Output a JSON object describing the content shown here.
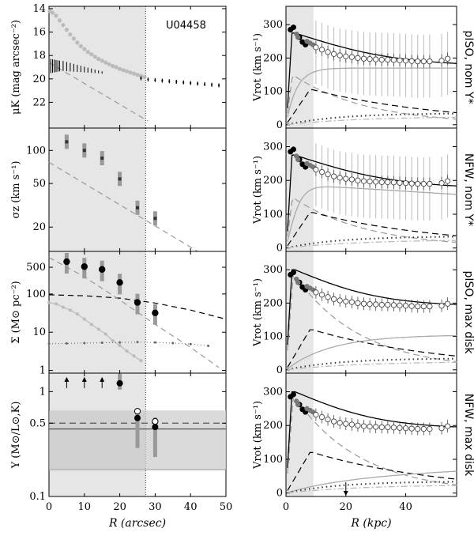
{
  "colors": {
    "shade": "#e6e6e6",
    "band_dark": "#bfbfbf",
    "band_light": "#d9d9d9",
    "grey": "#999999",
    "open": "#444444"
  },
  "chart_data": [
    {
      "type": "scatter",
      "panel": "surface-brightness",
      "galaxy": "U04458",
      "ylabel": "μ_K (mag arcsec^-2)",
      "ylim": [
        24,
        14
      ],
      "yticks": [
        "14",
        "16",
        "18",
        "20",
        "22"
      ],
      "xlim": [
        0,
        50
      ],
      "xticks": [
        "0",
        "10",
        "20",
        "30",
        "40",
        "50"
      ],
      "shade_xmax": 27.3,
      "profile": [
        [
          0.2,
          14.2
        ],
        [
          1,
          14.35
        ],
        [
          2,
          14.6
        ],
        [
          3,
          15.0
        ],
        [
          4,
          15.4
        ],
        [
          5,
          15.8
        ],
        [
          6,
          16.2
        ],
        [
          7,
          16.55
        ],
        [
          8,
          16.9
        ],
        [
          9,
          17.2
        ],
        [
          10,
          17.45
        ],
        [
          11,
          17.7
        ],
        [
          12,
          17.9
        ],
        [
          13,
          18.1
        ],
        [
          14,
          18.3
        ],
        [
          15,
          18.45
        ],
        [
          16,
          18.6
        ],
        [
          17,
          18.75
        ],
        [
          18,
          18.9
        ],
        [
          19,
          19.0
        ],
        [
          20,
          19.15
        ],
        [
          21,
          19.25
        ],
        [
          22,
          19.35
        ],
        [
          23,
          19.45
        ],
        [
          24,
          19.55
        ],
        [
          25,
          19.65
        ],
        [
          26,
          19.75
        ],
        [
          27,
          19.85
        ]
      ],
      "inner_points": [
        [
          0.5,
          18.9
        ],
        [
          1,
          18.9
        ],
        [
          1.5,
          18.9
        ],
        [
          2,
          18.9
        ],
        [
          2.5,
          18.9
        ],
        [
          3,
          18.9
        ],
        [
          4,
          18.9
        ],
        [
          5,
          18.95
        ],
        [
          6,
          19.0
        ],
        [
          7,
          19.05
        ],
        [
          8,
          19.1
        ],
        [
          9,
          19.15
        ],
        [
          10,
          19.2
        ],
        [
          11,
          19.25
        ],
        [
          12,
          19.3
        ],
        [
          13,
          19.35
        ],
        [
          14,
          19.4
        ],
        [
          15,
          19.45
        ]
      ],
      "outer_points": [
        [
          26,
          19.95
        ],
        [
          28,
          20.05
        ],
        [
          30,
          20.1
        ],
        [
          32,
          20.15
        ],
        [
          34,
          20.2
        ],
        [
          36,
          20.25
        ],
        [
          38,
          20.3
        ],
        [
          40,
          20.35
        ],
        [
          42,
          20.4
        ],
        [
          44,
          20.45
        ],
        [
          46,
          20.5
        ],
        [
          48,
          20.55
        ]
      ],
      "disk_fit": [
        [
          0,
          18.6
        ],
        [
          28,
          23.6
        ]
      ]
    },
    {
      "type": "scatter",
      "panel": "velocity-dispersion",
      "ylabel": "σ_z (km s^-1)",
      "yscale": "log",
      "ylim": [
        12,
        160
      ],
      "yticks": [
        {
          "label": "20",
          "value": 20
        },
        {
          "label": "50",
          "value": 50
        },
        {
          "label": "100",
          "value": 100
        }
      ],
      "xlim": [
        0,
        50
      ],
      "points": [
        [
          5,
          120
        ],
        [
          10,
          100
        ],
        [
          15,
          85
        ],
        [
          20,
          55
        ],
        [
          25,
          30
        ],
        [
          30,
          24
        ]
      ],
      "fit": [
        [
          0,
          78
        ],
        [
          42,
          12
        ]
      ]
    },
    {
      "type": "scatter",
      "panel": "surface-density",
      "ylabel": "Σ (M⊙ pc^-2)",
      "yscale": "log",
      "ylim": [
        1,
        1200
      ],
      "yticks": [
        {
          "label": "1",
          "value": 1
        },
        {
          "label": "10",
          "value": 10
        },
        {
          "label": "100",
          "value": 100
        },
        {
          "label": "500",
          "value": 500
        }
      ],
      "xlim": [
        0,
        50
      ],
      "points": [
        [
          5,
          700
        ],
        [
          10,
          520
        ],
        [
          15,
          440
        ],
        [
          20,
          200
        ],
        [
          25,
          60
        ],
        [
          30,
          32
        ]
      ],
      "gas_points": [
        [
          0,
          60
        ],
        [
          2,
          55
        ],
        [
          4,
          45
        ],
        [
          6,
          38
        ],
        [
          8,
          30
        ],
        [
          10,
          22
        ],
        [
          12,
          16
        ],
        [
          14,
          12
        ],
        [
          16,
          9
        ],
        [
          18,
          6
        ],
        [
          20,
          4.5
        ],
        [
          22,
          3.2
        ],
        [
          24,
          2.4
        ],
        [
          26,
          1.8
        ]
      ],
      "hi_points": [
        [
          0,
          5
        ],
        [
          5,
          5.1
        ],
        [
          10,
          5.2
        ],
        [
          15,
          5.3
        ],
        [
          20,
          5.4
        ],
        [
          25,
          5.5
        ],
        [
          30,
          5.4
        ],
        [
          35,
          5.2
        ],
        [
          40,
          4.9
        ],
        [
          45,
          4.4
        ]
      ]
    },
    {
      "type": "scatter",
      "panel": "mass-to-light",
      "ylabel": "Υ (M⊙/L⊙,K)",
      "yscale": "log",
      "ylim": [
        0.1,
        1.5
      ],
      "yticks": [
        {
          "label": "0.1",
          "value": 0.1
        },
        {
          "label": "0.5",
          "value": 0.5
        },
        {
          "label": "1",
          "value": 1
        }
      ],
      "xlim": [
        0,
        50
      ],
      "xlabel": "R (arcsec)",
      "points": [
        [
          20,
          1.2
        ],
        [
          25,
          0.56
        ],
        [
          30,
          0.46
        ]
      ],
      "open_points": [
        [
          25,
          0.65
        ],
        [
          30,
          0.52
        ]
      ],
      "upper_limits_at": [
        5,
        10,
        15
      ],
      "mean": 0.44,
      "nominal": 0.5,
      "band": [
        0.18,
        0.66
      ]
    },
    {
      "type": "line",
      "panel": "rotation-curve-pISO-nominal",
      "label": "pISO, nom Υ*",
      "ylabel": "V_rot (km s^-1)",
      "ylim": [
        0,
        350
      ],
      "yticks": [
        "0",
        "100",
        "200",
        "300"
      ],
      "xlim": [
        0,
        57
      ],
      "shade_xmax": 9.2
    },
    {
      "type": "line",
      "panel": "rotation-curve-NFW-nominal",
      "label": "NFW, nom Υ*",
      "ylabel": "V_rot (km s^-1)",
      "ylim": [
        0,
        350
      ],
      "yticks": [
        "0",
        "100",
        "200",
        "300"
      ],
      "xlim": [
        0,
        57
      ]
    },
    {
      "type": "line",
      "panel": "rotation-curve-pISO-maxdisk",
      "label": "pISO, max disk",
      "ylabel": "V_rot (km s^-1)",
      "ylim": [
        0,
        350
      ],
      "yticks": [
        "0",
        "100",
        "200",
        "300"
      ],
      "xlim": [
        0,
        57
      ]
    },
    {
      "type": "line",
      "panel": "rotation-curve-NFW-maxdisk",
      "label": "NFW, max disk",
      "ylabel": "V_rot (km s^-1)",
      "ylim": [
        0,
        350
      ],
      "yticks": [
        "0",
        "100",
        "200",
        "300"
      ],
      "xlim": [
        0,
        57
      ],
      "xticks": [
        "0",
        "20",
        "40"
      ],
      "xlabel": "R (kpc)",
      "arrow_at": 20
    }
  ],
  "rc": {
    "filled": [
      [
        1.5,
        285
      ],
      [
        2.5,
        292
      ],
      [
        4.5,
        262
      ],
      [
        5.5,
        248
      ],
      [
        6.5,
        240
      ]
    ],
    "grey": [
      [
        3.5,
        272
      ],
      [
        4,
        262
      ],
      [
        7,
        250
      ],
      [
        8,
        245
      ],
      [
        9,
        240
      ]
    ],
    "open": [
      [
        10,
        232
      ],
      [
        12,
        225
      ],
      [
        14,
        218
      ],
      [
        16,
        212
      ],
      [
        18,
        208
      ],
      [
        20,
        205
      ],
      [
        22,
        203
      ],
      [
        24,
        200
      ],
      [
        26,
        198
      ],
      [
        28,
        197
      ],
      [
        30,
        196
      ],
      [
        32,
        195
      ],
      [
        34,
        195
      ],
      [
        36,
        194
      ],
      [
        38,
        193
      ],
      [
        40,
        192
      ],
      [
        42,
        191
      ],
      [
        44,
        190
      ],
      [
        46,
        190
      ],
      [
        48,
        190
      ],
      [
        52,
        192
      ],
      [
        54,
        198
      ]
    ]
  },
  "text": {
    "galaxy": "U04458"
  }
}
